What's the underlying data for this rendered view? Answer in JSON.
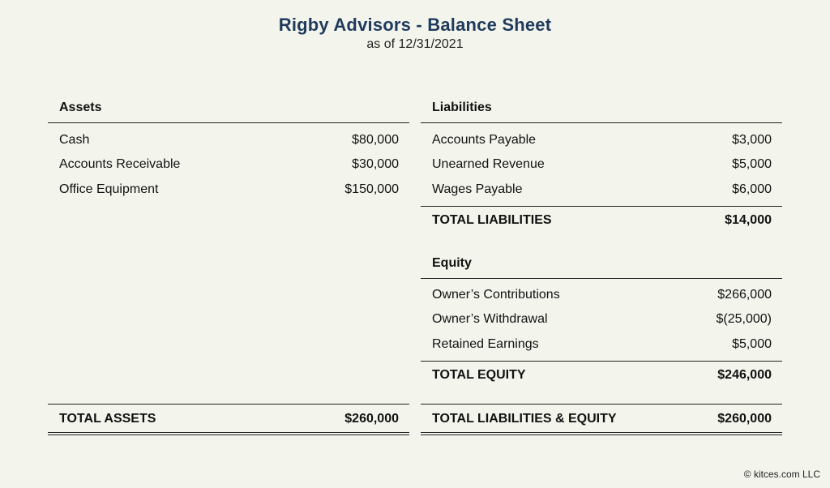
{
  "header": {
    "title": "Rigby Advisors - Balance Sheet",
    "subtitle": "as of 12/31/2021"
  },
  "assets": {
    "heading": "Assets",
    "items": [
      {
        "label": "Cash",
        "amount": "$80,000"
      },
      {
        "label": "Accounts Receivable",
        "amount": "$30,000"
      },
      {
        "label": "Office Equipment",
        "amount": "$150,000"
      }
    ],
    "total_label": "TOTAL ASSETS",
    "total_amount": "$260,000"
  },
  "liabilities": {
    "heading": "Liabilities",
    "items": [
      {
        "label": "Accounts Payable",
        "amount": "$3,000"
      },
      {
        "label": "Unearned Revenue",
        "amount": "$5,000"
      },
      {
        "label": "Wages Payable",
        "amount": "$6,000"
      }
    ],
    "total_label": "TOTAL LIABILITIES",
    "total_amount": "$14,000"
  },
  "equity": {
    "heading": "Equity",
    "items": [
      {
        "label": "Owner’s Contributions",
        "amount": "$266,000"
      },
      {
        "label": "Owner’s Withdrawal",
        "amount": "$(25,000)"
      },
      {
        "label": "Retained Earnings",
        "amount": "$5,000"
      }
    ],
    "total_label": "TOTAL EQUITY",
    "total_amount": "$246,000"
  },
  "grand_total": {
    "label": "TOTAL LIABILITIES & EQUITY",
    "amount": "$260,000"
  },
  "footer": {
    "copyright": "© kitces.com LLC"
  }
}
